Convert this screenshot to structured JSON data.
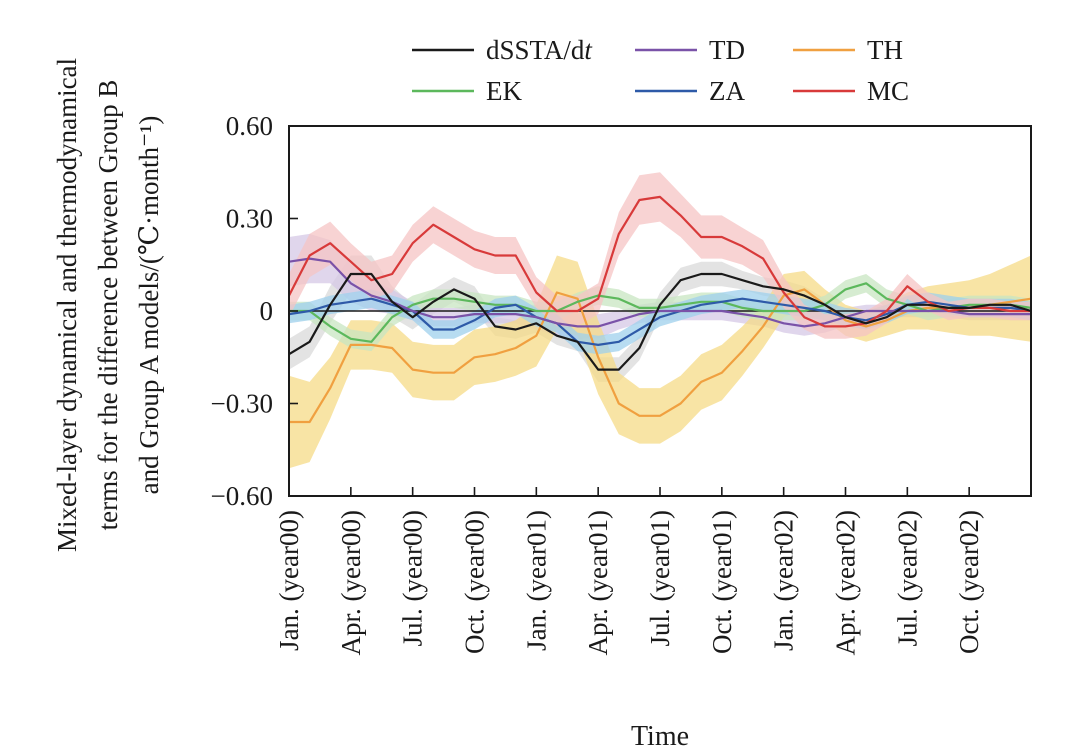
{
  "chart_data": {
    "type": "line",
    "title": "",
    "xlabel": "Time",
    "ylabel_lines": [
      "Mixed-layer dynamical and thermodynamical",
      "terms for the difference between Group B",
      "and Group A models/(℃·month⁻¹)"
    ],
    "ylim": [
      -0.6,
      0.6
    ],
    "yticks": [
      -0.6,
      -0.3,
      0,
      0.3,
      0.6
    ],
    "ytick_labels": [
      "−0.60",
      "−0.30",
      "0",
      "0.30",
      "0.60"
    ],
    "xlim": [
      0,
      36
    ],
    "xtick_positions": [
      0,
      3,
      6,
      9,
      12,
      15,
      18,
      21,
      24,
      27,
      30,
      33
    ],
    "xtick_labels": [
      "Jan. (year00)",
      "Apr. (year00)",
      "Jul. (year00)",
      "Oct. (year00)",
      "Jan. (year01)",
      "Apr. (year01)",
      "Jul. (year01)",
      "Oct. (year01)",
      "Jan. (year02)",
      "Apr. (year02)",
      "Jul. (year02)",
      "Oct. (year02)"
    ],
    "x": [
      0,
      1,
      2,
      3,
      4,
      5,
      6,
      7,
      8,
      9,
      10,
      11,
      12,
      13,
      14,
      15,
      16,
      17,
      18,
      19,
      20,
      21,
      22,
      23,
      24,
      25,
      26,
      27,
      28,
      29,
      30,
      31,
      32,
      33,
      34,
      35,
      36
    ],
    "legend_position": "top",
    "grid": false,
    "series": [
      {
        "name": "dSSTA/dt",
        "color": "#1a1a1a",
        "band_color": "#d9d9d9",
        "values": [
          -0.14,
          -0.1,
          0.02,
          0.12,
          0.12,
          0.03,
          -0.02,
          0.03,
          0.07,
          0.04,
          -0.05,
          -0.06,
          -0.04,
          -0.08,
          -0.1,
          -0.19,
          -0.19,
          -0.12,
          0.02,
          0.1,
          0.12,
          0.12,
          0.1,
          0.08,
          0.07,
          0.05,
          0.02,
          -0.02,
          -0.04,
          -0.02,
          0.02,
          0.02,
          0.01,
          0.01,
          0.02,
          0.02,
          0.0
        ],
        "band": [
          0.05,
          0.05,
          0.06,
          0.06,
          0.06,
          0.05,
          0.04,
          0.04,
          0.04,
          0.04,
          0.03,
          0.03,
          0.03,
          0.03,
          0.03,
          0.04,
          0.04,
          0.04,
          0.04,
          0.04,
          0.04,
          0.04,
          0.03,
          0.03,
          0.03,
          0.03,
          0.02,
          0.02,
          0.02,
          0.02,
          0.02,
          0.02,
          0.02,
          0.02,
          0.02,
          0.02,
          0.02
        ]
      },
      {
        "name": "TD",
        "color": "#7a52a8",
        "band_color": "#d6c8e6",
        "values": [
          0.16,
          0.17,
          0.16,
          0.09,
          0.05,
          0.03,
          0.0,
          -0.02,
          -0.02,
          -0.01,
          -0.01,
          -0.01,
          -0.02,
          -0.04,
          -0.05,
          -0.05,
          -0.03,
          -0.01,
          0.0,
          0.0,
          0.0,
          0.0,
          -0.01,
          -0.02,
          -0.04,
          -0.05,
          -0.04,
          -0.02,
          0.0,
          0.0,
          0.0,
          0.0,
          0.0,
          -0.01,
          -0.01,
          -0.01,
          -0.01
        ],
        "band": [
          0.08,
          0.08,
          0.07,
          0.06,
          0.05,
          0.04,
          0.03,
          0.03,
          0.03,
          0.03,
          0.03,
          0.03,
          0.04,
          0.04,
          0.04,
          0.04,
          0.03,
          0.03,
          0.03,
          0.03,
          0.03,
          0.03,
          0.03,
          0.03,
          0.03,
          0.03,
          0.03,
          0.03,
          0.02,
          0.02,
          0.02,
          0.02,
          0.02,
          0.02,
          0.02,
          0.02,
          0.02
        ]
      },
      {
        "name": "TH",
        "color": "#f0a040",
        "band_color": "#f6db87",
        "values": [
          -0.36,
          -0.36,
          -0.25,
          -0.11,
          -0.11,
          -0.12,
          -0.19,
          -0.2,
          -0.2,
          -0.15,
          -0.14,
          -0.12,
          -0.08,
          0.06,
          0.04,
          -0.15,
          -0.3,
          -0.34,
          -0.34,
          -0.3,
          -0.23,
          -0.2,
          -0.13,
          -0.05,
          0.05,
          0.07,
          0.02,
          -0.03,
          -0.05,
          -0.03,
          0.0,
          0.01,
          0.01,
          0.01,
          0.02,
          0.03,
          0.04
        ],
        "band": [
          0.15,
          0.13,
          0.1,
          0.08,
          0.08,
          0.08,
          0.09,
          0.09,
          0.09,
          0.09,
          0.09,
          0.09,
          0.1,
          0.12,
          0.12,
          0.12,
          0.1,
          0.09,
          0.09,
          0.09,
          0.09,
          0.09,
          0.08,
          0.07,
          0.07,
          0.06,
          0.05,
          0.05,
          0.05,
          0.05,
          0.06,
          0.07,
          0.08,
          0.09,
          0.1,
          0.12,
          0.14
        ]
      },
      {
        "name": "EK",
        "color": "#5cb85c",
        "band_color": "#c8e6c2",
        "values": [
          0.0,
          0.0,
          -0.05,
          -0.09,
          -0.1,
          -0.02,
          0.02,
          0.04,
          0.04,
          0.03,
          0.02,
          0.02,
          0.0,
          0.0,
          0.03,
          0.05,
          0.04,
          0.01,
          0.01,
          0.02,
          0.03,
          0.03,
          0.01,
          0.0,
          0.0,
          0.0,
          0.02,
          0.07,
          0.09,
          0.04,
          0.02,
          0.0,
          0.01,
          0.02,
          0.02,
          0.02,
          0.01
        ],
        "band": [
          0.03,
          0.03,
          0.03,
          0.03,
          0.03,
          0.03,
          0.03,
          0.03,
          0.03,
          0.03,
          0.03,
          0.03,
          0.03,
          0.03,
          0.03,
          0.03,
          0.03,
          0.03,
          0.03,
          0.03,
          0.03,
          0.03,
          0.03,
          0.03,
          0.03,
          0.03,
          0.03,
          0.03,
          0.03,
          0.03,
          0.03,
          0.03,
          0.03,
          0.03,
          0.03,
          0.03,
          0.03
        ]
      },
      {
        "name": "ZA",
        "color": "#2e5aa8",
        "band_color": "#9fd0ec",
        "values": [
          -0.01,
          0.0,
          0.02,
          0.03,
          0.04,
          0.02,
          0.0,
          -0.06,
          -0.06,
          -0.03,
          0.01,
          0.02,
          -0.02,
          -0.04,
          -0.1,
          -0.11,
          -0.1,
          -0.06,
          -0.02,
          0.0,
          0.02,
          0.03,
          0.04,
          0.03,
          0.02,
          0.01,
          0.0,
          -0.02,
          -0.03,
          -0.01,
          0.02,
          0.03,
          0.02,
          0.01,
          0.01,
          0.01,
          0.0
        ],
        "band": [
          0.03,
          0.03,
          0.03,
          0.03,
          0.03,
          0.03,
          0.03,
          0.03,
          0.03,
          0.03,
          0.03,
          0.03,
          0.03,
          0.03,
          0.03,
          0.03,
          0.03,
          0.03,
          0.03,
          0.03,
          0.03,
          0.03,
          0.03,
          0.03,
          0.03,
          0.03,
          0.03,
          0.03,
          0.03,
          0.03,
          0.03,
          0.03,
          0.03,
          0.03,
          0.03,
          0.03,
          0.03
        ]
      },
      {
        "name": "MC",
        "color": "#d83a3a",
        "band_color": "#f6c4c4",
        "values": [
          0.05,
          0.18,
          0.22,
          0.16,
          0.1,
          0.12,
          0.22,
          0.28,
          0.24,
          0.2,
          0.18,
          0.18,
          0.06,
          0.0,
          0.0,
          0.04,
          0.25,
          0.36,
          0.37,
          0.31,
          0.24,
          0.24,
          0.21,
          0.17,
          0.06,
          -0.02,
          -0.05,
          -0.05,
          -0.04,
          0.0,
          0.08,
          0.03,
          0.0,
          0.01,
          0.01,
          0.0,
          0.0
        ],
        "band": [
          0.07,
          0.07,
          0.07,
          0.06,
          0.06,
          0.06,
          0.06,
          0.06,
          0.06,
          0.06,
          0.06,
          0.06,
          0.05,
          0.05,
          0.05,
          0.05,
          0.07,
          0.08,
          0.08,
          0.07,
          0.07,
          0.07,
          0.06,
          0.06,
          0.05,
          0.04,
          0.04,
          0.04,
          0.04,
          0.04,
          0.04,
          0.03,
          0.03,
          0.03,
          0.03,
          0.03,
          0.03
        ]
      }
    ]
  }
}
